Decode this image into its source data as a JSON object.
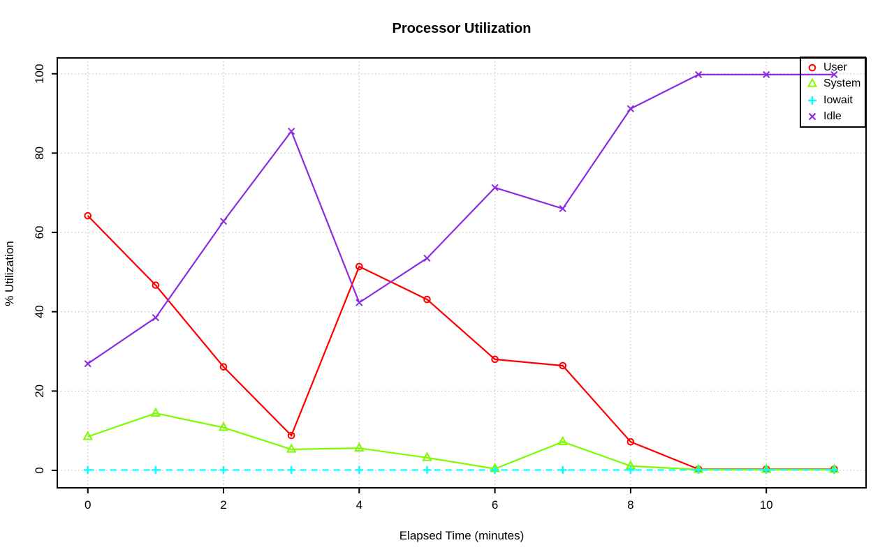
{
  "chart_data": {
    "type": "line",
    "title": "Processor Utilization",
    "xlabel": "Elapsed Time (minutes)",
    "ylabel": "% Utilization",
    "x": [
      0,
      1,
      2,
      3,
      4,
      5,
      6,
      7,
      8,
      9,
      10,
      11
    ],
    "xlim": [
      -0.45,
      11.47
    ],
    "ylim": [
      -4.4,
      104.0
    ],
    "x_ticks": [
      0,
      2,
      4,
      6,
      8,
      10
    ],
    "y_ticks": [
      0,
      20,
      40,
      60,
      80,
      100
    ],
    "grid": true,
    "grid_color": "#c9c9c9",
    "legend_position": "top-right",
    "series": [
      {
        "name": "User",
        "color": "#ff0000",
        "marker": "circle",
        "line": "solid",
        "values": [
          64.2,
          46.7,
          26.1,
          8.8,
          51.4,
          43.1,
          28.0,
          26.4,
          7.2,
          0.3,
          0.3,
          0.3
        ]
      },
      {
        "name": "System",
        "color": "#7cfc00",
        "marker": "triangle",
        "line": "solid",
        "values": [
          8.5,
          14.4,
          10.8,
          5.3,
          5.6,
          3.2,
          0.4,
          7.2,
          1.1,
          0.2,
          0.2,
          0.2
        ]
      },
      {
        "name": "Iowait",
        "color": "#00ffff",
        "marker": "plus",
        "line": "dashed",
        "values": [
          0.1,
          0.1,
          0.1,
          0.1,
          0.1,
          0.1,
          0.1,
          0.1,
          0.1,
          0.1,
          0.1,
          0.1
        ]
      },
      {
        "name": "Idle",
        "color": "#8a2be2",
        "marker": "x",
        "line": "solid",
        "values": [
          26.9,
          38.5,
          62.8,
          85.5,
          42.3,
          53.5,
          71.3,
          66.0,
          91.2,
          99.8,
          99.8,
          99.8
        ]
      }
    ]
  }
}
